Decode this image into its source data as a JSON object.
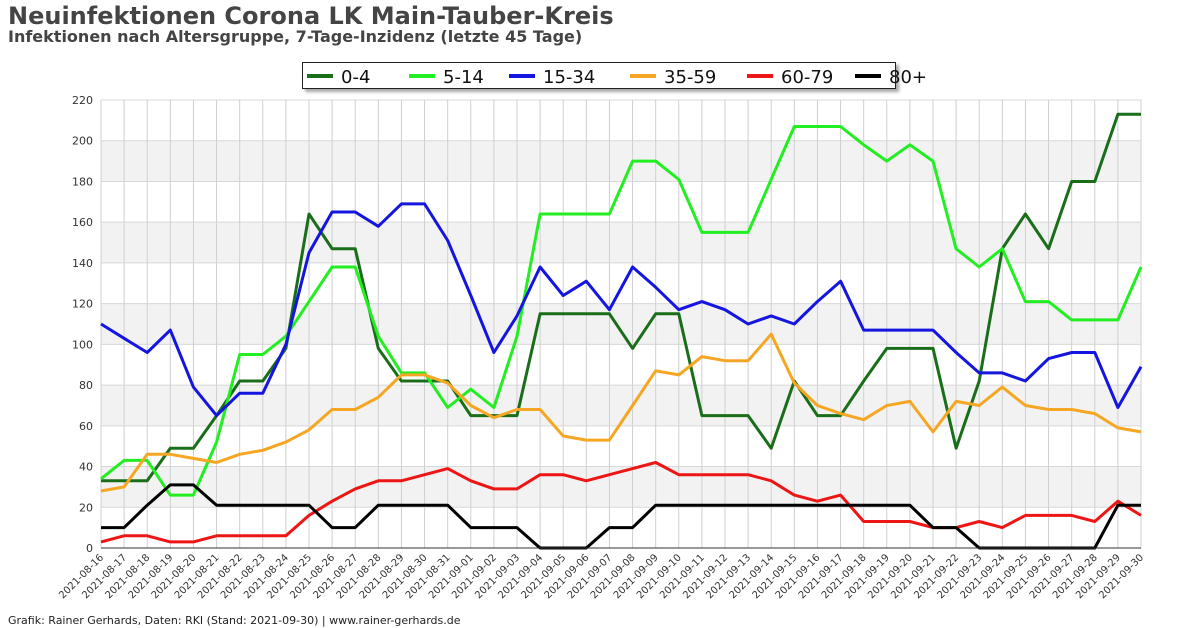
{
  "title": "Neuinfektionen Corona LK Main-Tauber-Kreis",
  "subtitle": "Infektionen nach Altersgruppe, 7-Tage-Inzidenz (letzte 45 Tage)",
  "footer": "Grafik: Rainer Gerhards, Daten: RKI (Stand: 2021-09-30) | www.rainer-gerhards.de",
  "chart_data": {
    "type": "line",
    "title": "Neuinfektionen Corona LK Main-Tauber-Kreis",
    "subtitle": "Infektionen nach Altersgruppe, 7-Tage-Inzidenz (letzte 45 Tage)",
    "xlabel": "",
    "ylabel": "",
    "ylim": [
      0,
      220
    ],
    "yticks": [
      0,
      20,
      40,
      60,
      80,
      100,
      120,
      140,
      160,
      180,
      200,
      220
    ],
    "grid": true,
    "legend_position": "top-center",
    "x": [
      "2021-08-16",
      "2021-08-17",
      "2021-08-18",
      "2021-08-19",
      "2021-08-20",
      "2021-08-21",
      "2021-08-22",
      "2021-08-23",
      "2021-08-24",
      "2021-08-25",
      "2021-08-26",
      "2021-08-27",
      "2021-08-28",
      "2021-08-29",
      "2021-08-30",
      "2021-08-31",
      "2021-09-01",
      "2021-09-02",
      "2021-09-03",
      "2021-09-04",
      "2021-09-05",
      "2021-09-06",
      "2021-09-07",
      "2021-09-08",
      "2021-09-09",
      "2021-09-10",
      "2021-09-11",
      "2021-09-12",
      "2021-09-13",
      "2021-09-14",
      "2021-09-15",
      "2021-09-16",
      "2021-09-17",
      "2021-09-18",
      "2021-09-19",
      "2021-09-20",
      "2021-09-21",
      "2021-09-22",
      "2021-09-23",
      "2021-09-24",
      "2021-09-25",
      "2021-09-26",
      "2021-09-27",
      "2021-09-28",
      "2021-09-29",
      "2021-09-30"
    ],
    "series": [
      {
        "name": "0-4",
        "color": "#1a6e1a",
        "values": [
          33,
          33,
          33,
          49,
          49,
          65,
          82,
          82,
          98,
          164,
          147,
          147,
          98,
          82,
          82,
          82,
          65,
          65,
          65,
          115,
          115,
          115,
          115,
          98,
          115,
          115,
          65,
          65,
          65,
          49,
          82,
          65,
          65,
          82,
          98,
          98,
          98,
          49,
          82,
          147,
          164,
          147,
          180,
          180,
          213,
          213
        ]
      },
      {
        "name": "5-14",
        "color": "#22ee22",
        "values": [
          34,
          43,
          43,
          26,
          26,
          52,
          95,
          95,
          104,
          121,
          138,
          138,
          104,
          86,
          86,
          69,
          78,
          69,
          104,
          164,
          164,
          164,
          164,
          190,
          190,
          181,
          155,
          155,
          155,
          181,
          207,
          207,
          207,
          198,
          190,
          198,
          190,
          147,
          138,
          147,
          121,
          121,
          112,
          112,
          112,
          138
        ]
      },
      {
        "name": "15-34",
        "color": "#1515e0",
        "values": [
          110,
          103,
          96,
          107,
          79,
          65,
          76,
          76,
          100,
          145,
          165,
          165,
          158,
          169,
          169,
          151,
          124,
          96,
          114,
          138,
          124,
          131,
          117,
          138,
          128,
          117,
          121,
          117,
          110,
          114,
          110,
          121,
          131,
          107,
          107,
          107,
          107,
          96,
          86,
          86,
          82,
          93,
          96,
          96,
          69,
          89
        ]
      },
      {
        "name": "35-59",
        "color": "#f5a623",
        "values": [
          28,
          30,
          46,
          46,
          44,
          42,
          46,
          48,
          52,
          58,
          68,
          68,
          74,
          85,
          85,
          81,
          70,
          64,
          68,
          68,
          55,
          53,
          53,
          70,
          87,
          85,
          94,
          92,
          92,
          105,
          81,
          70,
          66,
          63,
          70,
          72,
          57,
          72,
          70,
          79,
          70,
          68,
          68,
          66,
          59,
          57
        ]
      },
      {
        "name": "60-79",
        "color": "#ee1515",
        "values": [
          3,
          6,
          6,
          3,
          3,
          6,
          6,
          6,
          6,
          16,
          23,
          29,
          33,
          33,
          36,
          39,
          33,
          29,
          29,
          36,
          36,
          33,
          36,
          39,
          42,
          36,
          36,
          36,
          36,
          33,
          26,
          23,
          26,
          13,
          13,
          13,
          10,
          10,
          13,
          10,
          16,
          16,
          16,
          13,
          23,
          16
        ]
      },
      {
        "name": "80+",
        "color": "#000000",
        "values": [
          10,
          10,
          21,
          31,
          31,
          21,
          21,
          21,
          21,
          21,
          10,
          10,
          21,
          21,
          21,
          21,
          10,
          10,
          10,
          0,
          0,
          0,
          10,
          10,
          21,
          21,
          21,
          21,
          21,
          21,
          21,
          21,
          21,
          21,
          21,
          21,
          10,
          10,
          0,
          0,
          0,
          0,
          0,
          0,
          21,
          21
        ]
      }
    ]
  }
}
